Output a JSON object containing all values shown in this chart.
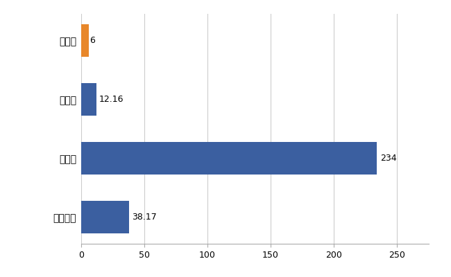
{
  "categories": [
    "全国平均",
    "県最大",
    "県平均",
    "当別町"
  ],
  "values": [
    38.17,
    234,
    12.16,
    6
  ],
  "bar_colors": [
    "#3b5fa0",
    "#3b5fa0",
    "#3b5fa0",
    "#e8872a"
  ],
  "value_labels": [
    "38.17",
    "234",
    "12.16",
    "6"
  ],
  "xlim": [
    0,
    275
  ],
  "xticks": [
    0,
    50,
    100,
    150,
    200,
    250
  ],
  "background_color": "#ffffff",
  "grid_color": "#cccccc",
  "bar_height": 0.55
}
